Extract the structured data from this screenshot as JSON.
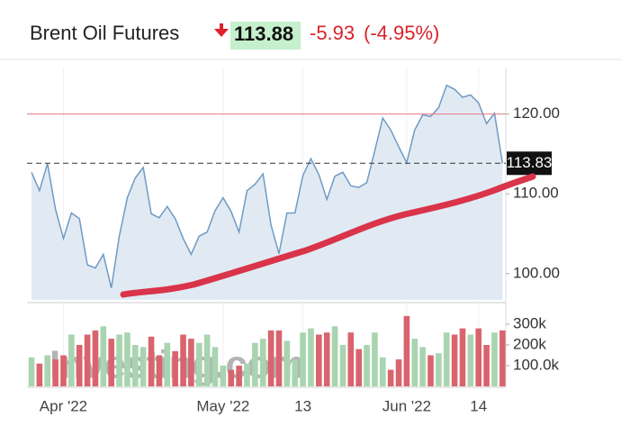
{
  "header": {
    "title": "Brent Oil Futures",
    "price": "113.88",
    "change": "-5.93",
    "change_pct": "(-4.95%)"
  },
  "chart_data": {
    "type": "line",
    "categories": [
      null,
      null,
      null,
      null,
      "Apr '22",
      null,
      null,
      null,
      null,
      null,
      null,
      null,
      null,
      null,
      null,
      null,
      null,
      null,
      null,
      null,
      null,
      null,
      null,
      null,
      "May '22",
      null,
      null,
      null,
      null,
      null,
      null,
      null,
      null,
      null,
      "13",
      null,
      null,
      null,
      null,
      null,
      null,
      null,
      null,
      null,
      null,
      null,
      null,
      "Jun '22",
      null,
      null,
      null,
      null,
      null,
      null,
      null,
      null,
      "14",
      null,
      null,
      null
    ],
    "values": [
      112.7,
      110.4,
      113.8,
      108.1,
      104.4,
      107.6,
      106.9,
      101.1,
      100.7,
      102.4,
      98.2,
      104.7,
      109.5,
      112.0,
      113.3,
      107.5,
      107.0,
      108.4,
      106.9,
      104.4,
      102.4,
      104.7,
      105.2,
      107.9,
      109.5,
      107.8,
      105.2,
      110.4,
      111.2,
      112.5,
      106.1,
      102.5,
      107.6,
      107.6,
      112.3,
      114.4,
      112.4,
      109.3,
      112.2,
      112.7,
      111.0,
      110.8,
      111.4,
      115.4,
      119.5,
      118.0,
      115.9,
      113.9,
      118.0,
      119.9,
      119.7,
      120.8,
      123.6,
      123.1,
      122.1,
      122.4,
      121.4,
      118.8,
      120.1,
      113.83
    ],
    "color": "#6f9ac4",
    "area_color": "#e1eaf3",
    "ylim": [
      96.7,
      124.7
    ],
    "yticks": [
      {
        "value": 100,
        "label": "100.00"
      },
      {
        "value": 110,
        "label": "110.00"
      },
      {
        "value": 120,
        "label": "120.00"
      }
    ],
    "level_line": 120,
    "level_color": "#e8777f",
    "watermark": "Investing.com",
    "volume": {
      "type": "bar",
      "values": [
        140000,
        110000,
        150000,
        130000,
        150000,
        250000,
        200000,
        250000,
        270000,
        290000,
        230000,
        250000,
        260000,
        200000,
        190000,
        240000,
        150000,
        210000,
        170000,
        250000,
        230000,
        210000,
        250000,
        190000,
        100000,
        80000,
        100000,
        110000,
        210000,
        230000,
        270000,
        270000,
        220000,
        130000,
        260000,
        280000,
        250000,
        260000,
        290000,
        200000,
        260000,
        180000,
        200000,
        260000,
        140000,
        80000,
        130000,
        340000,
        230000,
        190000,
        150000,
        160000,
        260000,
        250000,
        280000,
        250000,
        280000,
        200000,
        260000,
        270000
      ],
      "ylim": [
        0,
        387000
      ],
      "yticks": [
        {
          "value": 100000,
          "label": "100.0k"
        },
        {
          "value": 200000,
          "label": "200k"
        },
        {
          "value": 300000,
          "label": "300k"
        }
      ],
      "up_color": "#a9d4b0",
      "down_color": "#d9646d"
    }
  }
}
